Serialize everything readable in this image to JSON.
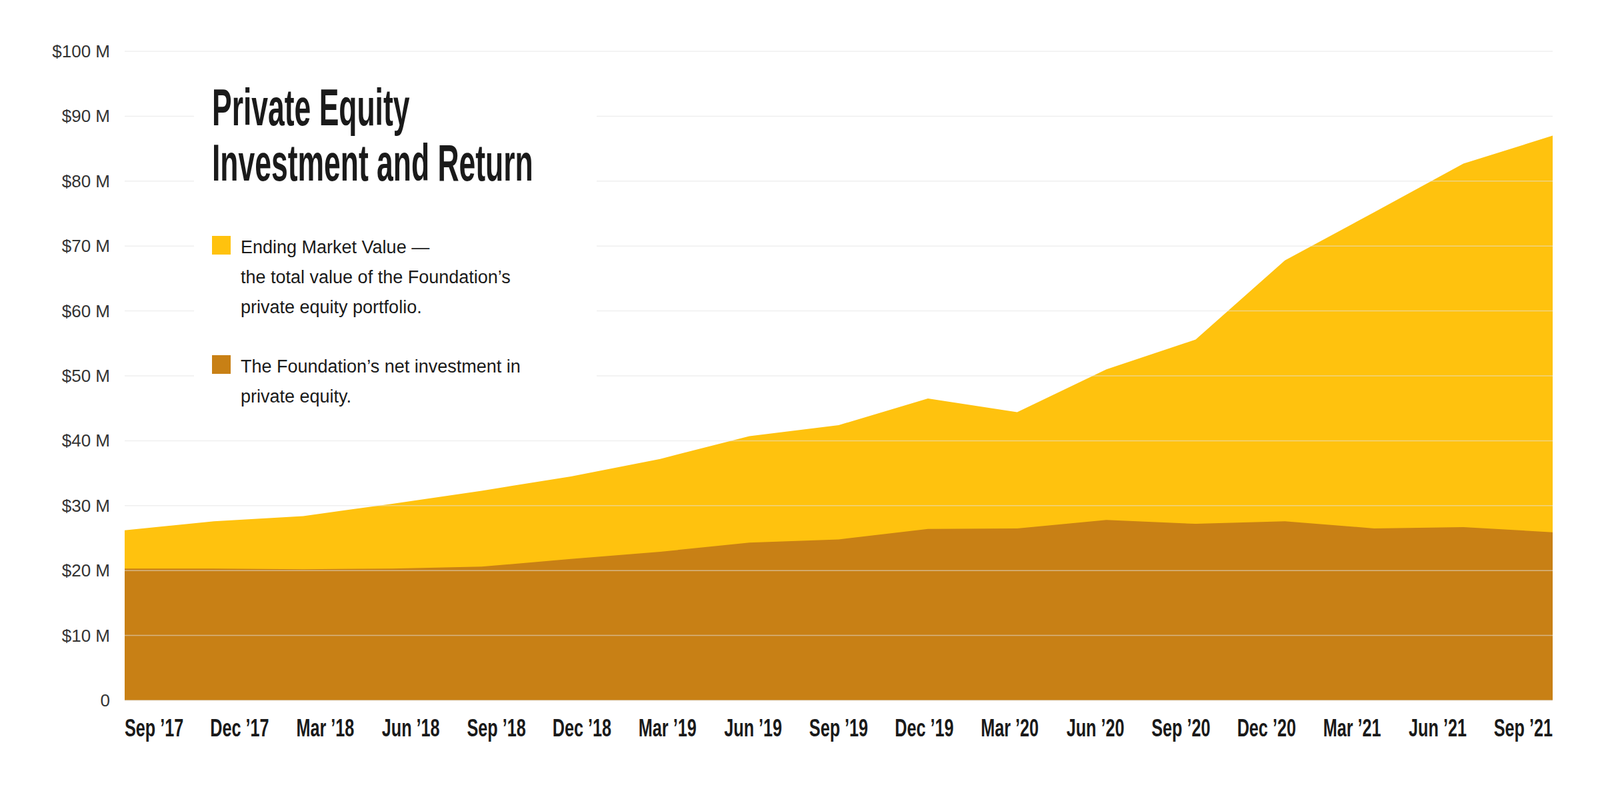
{
  "chart_data": {
    "type": "area",
    "title": "Private Equity Investment and Return",
    "categories": [
      "Sep ’17",
      "Dec ’17",
      "Mar ’18",
      "Jun ’18",
      "Sep ’18",
      "Dec ’18",
      "Mar ’19",
      "Jun ’19",
      "Sep ’19",
      "Dec ’19",
      "Mar ’20",
      "Jun ’20",
      "Sep ’20",
      "Dec ’20",
      "Mar ’21",
      "Jun ’21",
      "Sep ’21"
    ],
    "series": [
      {
        "name": "Ending Market Value — the total value of the Foundation’s private equity portfolio.",
        "color": "#FFC20E",
        "values": [
          26.2,
          27.6,
          28.4,
          30.3,
          32.3,
          34.5,
          37.2,
          40.7,
          42.4,
          46.5,
          44.4,
          51.0,
          55.6,
          67.8,
          75.2,
          82.7,
          87.0
        ]
      },
      {
        "name": "The Foundation’s net investment in private equity.",
        "color": "#C88015",
        "values": [
          20.3,
          20.3,
          20.2,
          20.3,
          20.6,
          21.8,
          22.9,
          24.3,
          24.8,
          26.4,
          26.5,
          27.8,
          27.2,
          27.6,
          26.5,
          26.7,
          25.9
        ]
      }
    ],
    "ylim": [
      0,
      100
    ],
    "yticks": [
      0,
      {
        "value": 10,
        "label": "$10 M"
      },
      {
        "value": 20,
        "label": "$20 M"
      },
      {
        "value": 30,
        "label": "$30 M"
      },
      {
        "value": 40,
        "label": "$40 M"
      },
      {
        "value": 50,
        "label": "$50 M"
      },
      {
        "value": 60,
        "label": "$60 M"
      },
      {
        "value": 70,
        "label": "$70 M"
      },
      {
        "value": 80,
        "label": "$80 M"
      },
      {
        "value": 90,
        "label": "$90 M"
      },
      {
        "value": 100,
        "label": "$100 M"
      }
    ],
    "grid": true,
    "legend": "upper left",
    "stacked": false
  }
}
